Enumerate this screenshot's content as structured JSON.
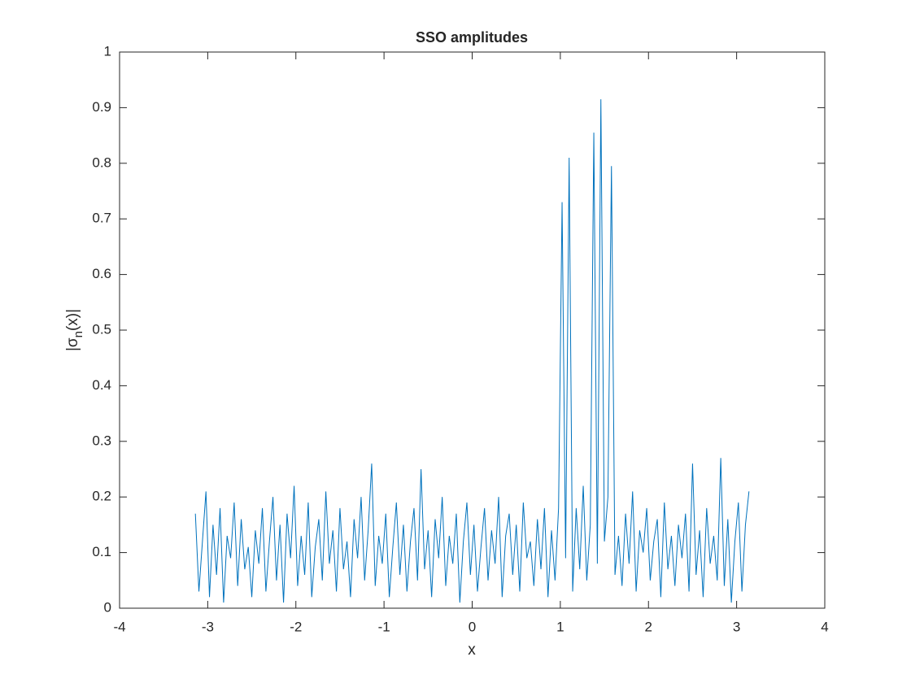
{
  "chart_data": {
    "type": "line",
    "title": "SSO amplitudes",
    "xlabel": "x",
    "ylabel": [
      "|σ",
      "n",
      "(x)|"
    ],
    "color": "#0072bd",
    "xlim": [
      -4,
      4
    ],
    "xticks": [
      -4,
      -3,
      -2,
      -1,
      0,
      1,
      2,
      3,
      4
    ],
    "ylim": [
      0,
      1
    ],
    "yticks": [
      0,
      0.1,
      0.2,
      0.3,
      0.4,
      0.5,
      0.6,
      0.7,
      0.8,
      0.9,
      1
    ],
    "grid": false,
    "x": [
      -3.14,
      -3.1,
      -3.06,
      -3.02,
      -2.98,
      -2.94,
      -2.9,
      -2.86,
      -2.82,
      -2.78,
      -2.74,
      -2.7,
      -2.66,
      -2.62,
      -2.58,
      -2.54,
      -2.5,
      -2.46,
      -2.42,
      -2.38,
      -2.34,
      -2.3,
      -2.26,
      -2.22,
      -2.18,
      -2.14,
      -2.1,
      -2.06,
      -2.02,
      -1.98,
      -1.94,
      -1.9,
      -1.86,
      -1.82,
      -1.78,
      -1.74,
      -1.7,
      -1.66,
      -1.62,
      -1.58,
      -1.54,
      -1.5,
      -1.46,
      -1.42,
      -1.38,
      -1.34,
      -1.3,
      -1.26,
      -1.22,
      -1.18,
      -1.14,
      -1.1,
      -1.06,
      -1.02,
      -0.98,
      -0.94,
      -0.9,
      -0.86,
      -0.82,
      -0.78,
      -0.74,
      -0.7,
      -0.66,
      -0.62,
      -0.58,
      -0.54,
      -0.5,
      -0.46,
      -0.42,
      -0.38,
      -0.34,
      -0.3,
      -0.26,
      -0.22,
      -0.18,
      -0.14,
      -0.1,
      -0.06,
      -0.02,
      0.02,
      0.06,
      0.1,
      0.14,
      0.18,
      0.22,
      0.26,
      0.3,
      0.34,
      0.38,
      0.42,
      0.46,
      0.5,
      0.54,
      0.58,
      0.62,
      0.66,
      0.7,
      0.74,
      0.78,
      0.82,
      0.86,
      0.9,
      0.94,
      0.98,
      1.02,
      1.06,
      1.1,
      1.14,
      1.18,
      1.22,
      1.26,
      1.3,
      1.34,
      1.38,
      1.42,
      1.46,
      1.5,
      1.54,
      1.58,
      1.62,
      1.66,
      1.7,
      1.74,
      1.78,
      1.82,
      1.86,
      1.9,
      1.94,
      1.98,
      2.02,
      2.06,
      2.1,
      2.14,
      2.18,
      2.22,
      2.26,
      2.3,
      2.34,
      2.38,
      2.42,
      2.46,
      2.5,
      2.54,
      2.58,
      2.62,
      2.66,
      2.7,
      2.74,
      2.78,
      2.82,
      2.86,
      2.9,
      2.94,
      2.98,
      3.02,
      3.06,
      3.1,
      3.14
    ],
    "values": [
      0.17,
      0.03,
      0.12,
      0.21,
      0.02,
      0.15,
      0.06,
      0.18,
      0.01,
      0.13,
      0.09,
      0.19,
      0.04,
      0.16,
      0.07,
      0.11,
      0.02,
      0.14,
      0.08,
      0.18,
      0.03,
      0.12,
      0.2,
      0.05,
      0.15,
      0.01,
      0.17,
      0.09,
      0.22,
      0.04,
      0.13,
      0.06,
      0.19,
      0.02,
      0.11,
      0.16,
      0.05,
      0.21,
      0.08,
      0.14,
      0.03,
      0.18,
      0.07,
      0.12,
      0.02,
      0.16,
      0.09,
      0.2,
      0.05,
      0.14,
      0.26,
      0.04,
      0.13,
      0.08,
      0.17,
      0.02,
      0.11,
      0.19,
      0.06,
      0.15,
      0.03,
      0.12,
      0.18,
      0.05,
      0.25,
      0.07,
      0.14,
      0.02,
      0.16,
      0.09,
      0.2,
      0.04,
      0.13,
      0.08,
      0.17,
      0.01,
      0.12,
      0.19,
      0.06,
      0.15,
      0.03,
      0.11,
      0.18,
      0.05,
      0.14,
      0.08,
      0.2,
      0.02,
      0.13,
      0.17,
      0.06,
      0.15,
      0.03,
      0.19,
      0.09,
      0.12,
      0.04,
      0.16,
      0.07,
      0.18,
      0.02,
      0.14,
      0.05,
      0.18,
      0.73,
      0.09,
      0.81,
      0.03,
      0.18,
      0.07,
      0.22,
      0.05,
      0.15,
      0.855,
      0.08,
      0.915,
      0.12,
      0.2,
      0.795,
      0.06,
      0.13,
      0.04,
      0.17,
      0.08,
      0.21,
      0.03,
      0.14,
      0.1,
      0.18,
      0.05,
      0.12,
      0.16,
      0.02,
      0.19,
      0.07,
      0.13,
      0.04,
      0.15,
      0.09,
      0.17,
      0.03,
      0.26,
      0.06,
      0.14,
      0.02,
      0.18,
      0.08,
      0.13,
      0.05,
      0.27,
      0.04,
      0.16,
      0.01,
      0.12,
      0.19,
      0.03,
      0.15,
      0.21
    ]
  }
}
